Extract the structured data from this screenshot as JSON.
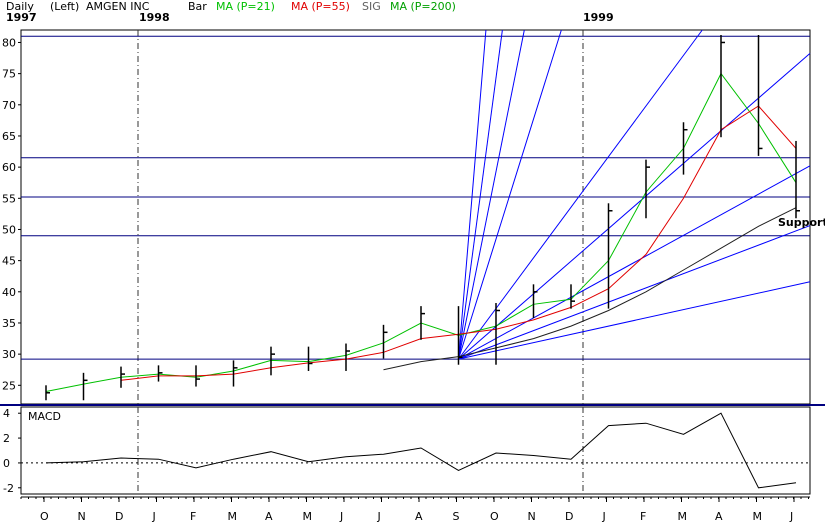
{
  "header": {
    "period": "Daily",
    "scale": "(Left)",
    "symbol": "AMGEN INC",
    "style": "Bar",
    "ma21": "MA (P=21)",
    "ma55": "MA (P=55)",
    "sig": "SIG",
    "ma200": "MA (P=200)"
  },
  "years": [
    "1997",
    "1998",
    "1999"
  ],
  "colors": {
    "ma21": "#00c000",
    "ma55": "#e00000",
    "ma200": "#202020",
    "fan": "#0000ff",
    "grid": "#000080",
    "bars": "#000000"
  },
  "chart_data": [
    {
      "type": "line",
      "name": "price",
      "ylim": [
        22,
        82
      ],
      "yticks": [
        25,
        30,
        35,
        40,
        45,
        50,
        55,
        60,
        65,
        70,
        75,
        80
      ],
      "xticks": [
        "O",
        "N",
        "D",
        "J",
        "F",
        "M",
        "A",
        "M",
        "J",
        "J",
        "A",
        "S",
        "O",
        "N",
        "D",
        "J",
        "F",
        "M",
        "A",
        "M",
        "J"
      ],
      "horizontal_levels": [
        29.2,
        49.0,
        55.2,
        61.5,
        81.0
      ],
      "annotation": "Support",
      "x": [
        "1997-10",
        "1997-11",
        "1997-12",
        "1998-01",
        "1998-02",
        "1998-03",
        "1998-04",
        "1998-05",
        "1998-06",
        "1998-07",
        "1998-08",
        "1998-09",
        "1998-10",
        "1998-11",
        "1998-12",
        "1999-01",
        "1999-02",
        "1999-03",
        "1999-04",
        "1999-05",
        "1999-06"
      ],
      "series": [
        {
          "name": "Bar",
          "values": [
            23.8,
            25.8,
            26.8,
            27.0,
            26.0,
            27.8,
            30.0,
            28.5,
            30.5,
            33.5,
            36.5,
            29.5,
            37.0,
            40.0,
            38.5,
            53.0,
            60.0,
            66.0,
            80.0,
            63.0,
            53.0
          ]
        },
        {
          "name": "MA (P=21)",
          "values": [
            24.0,
            25.2,
            26.3,
            26.8,
            26.3,
            27.3,
            29.0,
            28.8,
            29.8,
            31.8,
            35.0,
            33.0,
            34.5,
            38.0,
            38.8,
            45.0,
            56.0,
            63.0,
            75.0,
            67.0,
            57.5
          ]
        },
        {
          "name": "MA (P=55)",
          "values": [
            null,
            null,
            25.8,
            26.5,
            26.5,
            26.8,
            27.8,
            28.6,
            29.2,
            30.3,
            32.5,
            33.2,
            34.0,
            35.5,
            37.5,
            40.5,
            46.0,
            55.0,
            66.0,
            69.8,
            63.0
          ]
        },
        {
          "name": "MA (P=200)",
          "values": [
            null,
            null,
            null,
            null,
            null,
            null,
            null,
            null,
            null,
            27.5,
            28.8,
            29.6,
            31.0,
            32.5,
            34.5,
            37.0,
            40.0,
            43.5,
            47.0,
            50.5,
            53.5
          ]
        }
      ]
    },
    {
      "type": "line",
      "name": "MACD",
      "title": "MACD",
      "ylim": [
        -2.5,
        4.5
      ],
      "yticks": [
        4,
        2,
        0,
        -2
      ],
      "x": [
        "1997-10",
        "1997-11",
        "1997-12",
        "1998-01",
        "1998-02",
        "1998-03",
        "1998-04",
        "1998-05",
        "1998-06",
        "1998-07",
        "1998-08",
        "1998-09",
        "1998-10",
        "1998-11",
        "1998-12",
        "1999-01",
        "1999-02",
        "1999-03",
        "1999-04",
        "1999-05",
        "1999-06"
      ],
      "series": [
        {
          "name": "MACD",
          "values": [
            0.0,
            0.1,
            0.4,
            0.3,
            -0.4,
            0.3,
            0.9,
            0.1,
            0.5,
            0.7,
            1.2,
            -0.6,
            0.8,
            0.6,
            0.3,
            3.0,
            3.2,
            2.3,
            4.0,
            -2.0,
            -1.6
          ]
        }
      ]
    }
  ]
}
